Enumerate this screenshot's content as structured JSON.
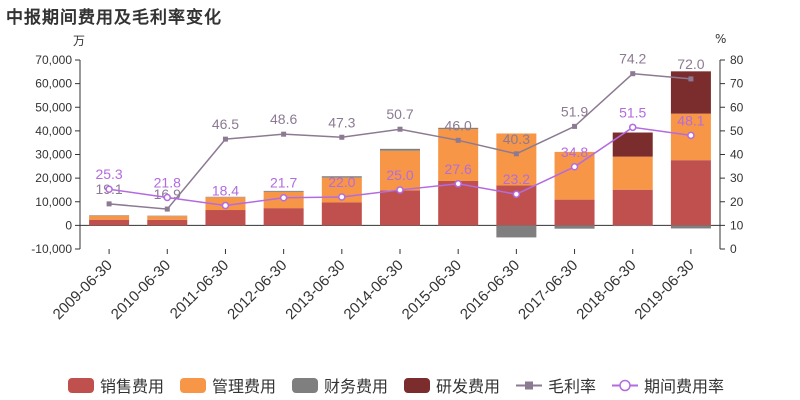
{
  "title": "中报期间费用及毛利率变化",
  "left_unit": "万",
  "right_unit": "%",
  "chart_data": {
    "type": "bar",
    "categories": [
      "2009-06-30",
      "2010-06-30",
      "2011-06-30",
      "2012-06-30",
      "2013-06-30",
      "2014-06-30",
      "2015-06-30",
      "2016-06-30",
      "2017-06-30",
      "2018-06-30",
      "2019-06-30"
    ],
    "left_axis": {
      "ylim": [
        -10000,
        70000
      ],
      "ticks": [
        "-10,000",
        "0",
        "10,000",
        "20,000",
        "30,000",
        "40,000",
        "50,000",
        "60,000",
        "70,000"
      ]
    },
    "right_axis": {
      "ylim": [
        0,
        80
      ],
      "ticks": [
        "0",
        "10",
        "20",
        "30",
        "40",
        "50",
        "60",
        "70",
        "80"
      ]
    },
    "series": [
      {
        "name": "销售费用",
        "kind": "bar",
        "color": "#c0504d",
        "values": [
          2400,
          2300,
          6500,
          7300,
          9700,
          14800,
          18800,
          16900,
          10900,
          15100,
          27600
        ]
      },
      {
        "name": "管理费用",
        "kind": "bar",
        "color": "#f79646",
        "values": [
          1700,
          1600,
          5400,
          6900,
          10500,
          16800,
          22000,
          22000,
          20200,
          14000,
          19700
        ]
      },
      {
        "name": "财务费用",
        "kind": "bar",
        "color": "#7f7f7f",
        "values": [
          200,
          200,
          200,
          400,
          600,
          800,
          500,
          -5100,
          -1400,
          -300,
          -1300
        ]
      },
      {
        "name": "研发费用",
        "kind": "bar",
        "color": "#7b2c2c",
        "values": [
          0,
          0,
          0,
          0,
          0,
          0,
          0,
          0,
          0,
          10200,
          17900
        ]
      },
      {
        "name": "毛利率",
        "kind": "line",
        "axis": "right",
        "color": "#8c7a93",
        "values": [
          19.1,
          16.9,
          46.5,
          48.6,
          47.3,
          50.7,
          46.0,
          40.3,
          51.9,
          74.2,
          72.0
        ],
        "labels": [
          "19.1",
          "16.9",
          "46.5",
          "48.6",
          "47.3",
          "50.7",
          "46.0",
          "40.3",
          "51.9",
          "74.2",
          "72.0"
        ]
      },
      {
        "name": "期间费用率",
        "kind": "line",
        "axis": "right",
        "color": "#b36be0",
        "values": [
          25.3,
          21.8,
          18.4,
          21.7,
          22.0,
          25.0,
          27.6,
          23.2,
          34.8,
          51.5,
          48.1
        ],
        "labels": [
          "25.3",
          "21.8",
          "18.4",
          "21.7",
          "22.0",
          "25.0",
          "27.6",
          "23.2",
          "34.8",
          "51.5",
          "48.1"
        ]
      }
    ],
    "legend_position": "bottom",
    "grid": false
  }
}
